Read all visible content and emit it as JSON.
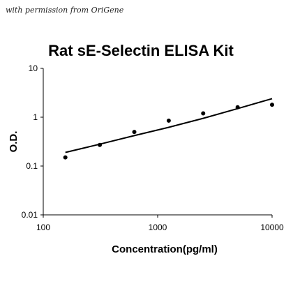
{
  "credit": "with permission from OriGene",
  "chart_data": {
    "type": "scatter",
    "title": "Rat sE-Selectin ELISA Kit",
    "xlabel": "Concentration(pg/ml)",
    "ylabel": "O.D.",
    "xscale": "log",
    "yscale": "log",
    "xlim": [
      100,
      10000
    ],
    "ylim": [
      0.01,
      10
    ],
    "x_tick_labels": [
      "100",
      "1000",
      "10000"
    ],
    "y_tick_labels": [
      "10",
      "1",
      "0.1",
      "0.01"
    ],
    "grid": false,
    "legend": "none",
    "series": [
      {
        "x": [
          156,
          312,
          625,
          1250,
          2500,
          5000,
          10000
        ],
        "y": [
          0.15,
          0.27,
          0.5,
          0.85,
          1.2,
          1.6,
          1.8
        ]
      }
    ],
    "fit_curve": {
      "x": [
        156,
        312,
        625,
        1250,
        2500,
        5000,
        10000
      ],
      "y": [
        0.19,
        0.28,
        0.42,
        0.62,
        0.95,
        1.5,
        2.4
      ]
    }
  }
}
